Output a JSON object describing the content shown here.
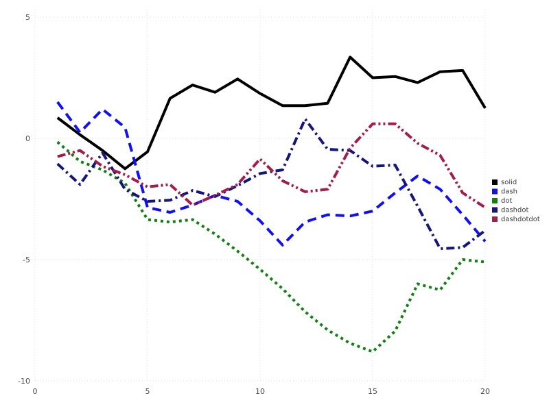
{
  "chart_data": {
    "type": "line",
    "x": [
      1,
      2,
      3,
      4,
      5,
      6,
      7,
      8,
      9,
      10,
      11,
      12,
      13,
      14,
      15,
      16,
      17,
      18,
      19,
      20
    ],
    "series": [
      {
        "name": "solid",
        "color": "#000000",
        "dash": "solid",
        "values": [
          0.85,
          0.15,
          -0.5,
          -1.25,
          -0.55,
          1.65,
          2.2,
          1.9,
          2.45,
          1.85,
          1.35,
          1.35,
          1.45,
          3.35,
          2.5,
          2.55,
          2.3,
          2.75,
          2.8,
          1.25
        ]
      },
      {
        "name": "dash",
        "color": "#1010f0",
        "dash": "long-dash",
        "values": [
          1.5,
          0.25,
          1.2,
          0.45,
          -2.85,
          -3.05,
          -2.75,
          -2.35,
          -2.6,
          -3.4,
          -4.4,
          -3.45,
          -3.15,
          -3.2,
          -3.0,
          -2.25,
          -1.55,
          -2.1,
          -3.15,
          -4.25
        ]
      },
      {
        "name": "dot",
        "color": "#128012",
        "dash": "dot",
        "values": [
          -0.15,
          -0.95,
          -1.3,
          -1.85,
          -3.35,
          -3.45,
          -3.35,
          -3.95,
          -4.65,
          -5.4,
          -6.2,
          -7.15,
          -7.9,
          -8.45,
          -8.8,
          -7.95,
          -6.0,
          -6.25,
          -5.0,
          -5.1
        ]
      },
      {
        "name": "dashdot",
        "color": "#16167a",
        "dash": "dash-dot",
        "values": [
          -1.05,
          -1.9,
          -0.6,
          -2.1,
          -2.6,
          -2.55,
          -2.15,
          -2.4,
          -1.95,
          -1.45,
          -1.3,
          0.8,
          -0.45,
          -0.5,
          -1.15,
          -1.1,
          -2.8,
          -4.55,
          -4.5,
          -3.8
        ]
      },
      {
        "name": "dashdotdot",
        "color": "#a01e4b",
        "dash": "dash-dot-dot",
        "values": [
          -0.75,
          -0.5,
          -1.15,
          -1.5,
          -2.0,
          -1.9,
          -2.75,
          -2.35,
          -1.9,
          -0.85,
          -1.75,
          -2.2,
          -2.1,
          -0.4,
          0.6,
          0.6,
          -0.2,
          -0.7,
          -2.25,
          -2.85
        ]
      }
    ],
    "xticks": [
      "0",
      "5",
      "10",
      "15",
      "20"
    ],
    "yticks": [
      "-10",
      "-5",
      "0",
      "5"
    ],
    "xlim": [
      0,
      20
    ],
    "ylim": [
      -10,
      5
    ],
    "grid": true,
    "grid_color": "#d9d9e3",
    "legend_position": "right",
    "legend_entries": [
      "solid",
      "dash",
      "dot",
      "dashdot",
      "dashdotdot"
    ],
    "title": "",
    "xlabel": "",
    "ylabel": ""
  }
}
